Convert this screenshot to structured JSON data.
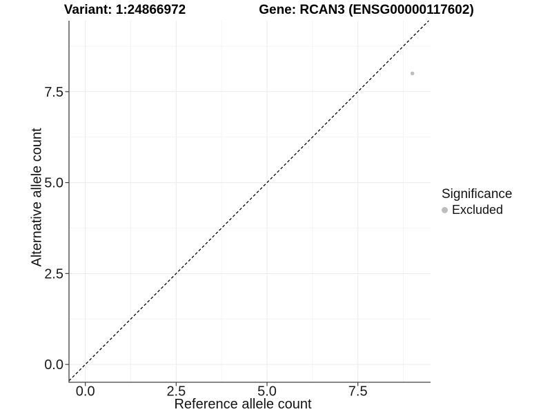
{
  "chart_data": {
    "type": "scatter",
    "title_left": "Variant: 1:24866972",
    "title_right": "Gene: RCAN3 (ENSG00000117602)",
    "xlabel": "Reference allele count",
    "ylabel": "Alternative allele count",
    "x_tick_labels": [
      "0.0",
      "2.5",
      "5.0",
      "7.5"
    ],
    "x_tick_values": [
      0,
      2.5,
      5,
      7.5
    ],
    "y_tick_labels": [
      "0.0",
      "2.5",
      "5.0",
      "7.5"
    ],
    "y_tick_values": [
      0,
      2.5,
      5,
      7.5
    ],
    "minor_tick_values": [
      1.25,
      3.75,
      6.25,
      8.75
    ],
    "xlim": [
      -0.45,
      9.5
    ],
    "ylim": [
      -0.49,
      9.45
    ],
    "grid": "major and minor gridlines, very light gray, on white panel",
    "legend_position": "right-center",
    "legend": {
      "title": "Significance",
      "entries": [
        {
          "label": "Excluded",
          "color": "#bdbdbd"
        }
      ]
    },
    "series": [
      {
        "name": "Excluded",
        "color": "#bdbdbd",
        "points": [
          {
            "x": 9,
            "y": 8
          }
        ]
      }
    ],
    "reference_line": {
      "description": "identity line y = x",
      "slope": 1,
      "intercept": 0,
      "style": "dashed",
      "color": "#000000"
    },
    "style": {
      "axis_line_color": "#3f3f3f",
      "tick_label_color": "#191919",
      "major_grid_color": "#ebebeb",
      "minor_grid_color": "#f4f4f4",
      "point_color": "#bdbdbd"
    }
  }
}
